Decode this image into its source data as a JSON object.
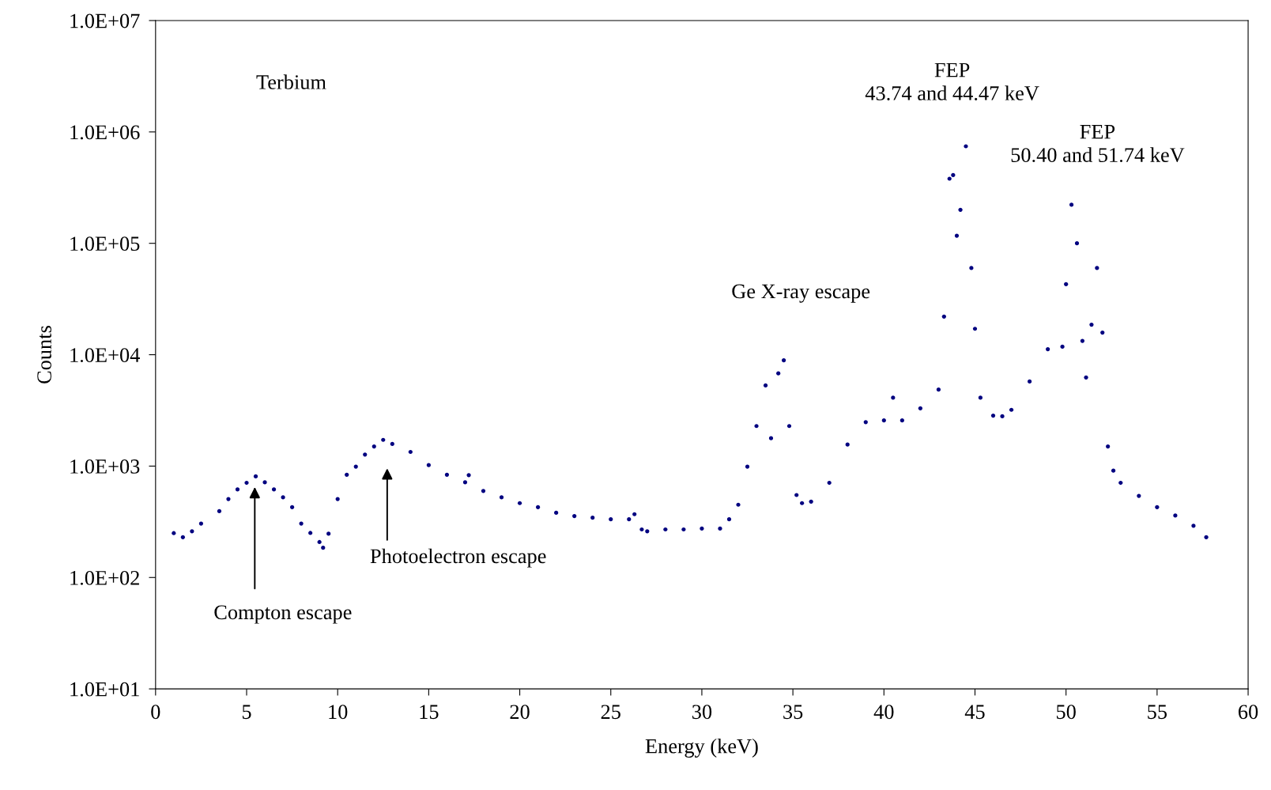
{
  "chart_data": {
    "type": "scatter",
    "xlabel": "Energy (keV)",
    "ylabel": "Counts",
    "log": "y",
    "marker": "circle",
    "xlim": [
      0,
      60
    ],
    "xticks": [
      0,
      5,
      10,
      15,
      20,
      25,
      30,
      35,
      40,
      45,
      50,
      55,
      60
    ],
    "ylim": [
      10,
      10000000
    ],
    "yticks": [
      {
        "value": 10,
        "label": "1.0E+01"
      },
      {
        "value": 100,
        "label": "1.0E+02"
      },
      {
        "value": 1000,
        "label": "1.0E+03"
      },
      {
        "value": 10000,
        "label": "1.0E+04"
      },
      {
        "value": 100000,
        "label": "1.0E+05"
      },
      {
        "value": 1000000,
        "label": "1.0E+06"
      },
      {
        "value": 10000000,
        "label": "1.0E+07"
      }
    ],
    "series": [
      {
        "color": "#000080",
        "x": [
          1.0,
          1.5,
          2.0,
          2.5,
          3.5,
          4.0,
          4.5,
          5.0,
          5.5,
          6.0,
          6.5,
          7.0,
          7.5,
          8.0,
          8.5,
          9.0,
          9.2,
          9.5,
          10.0,
          10.5,
          11.0,
          11.5,
          12.0,
          12.5,
          13.0,
          14.0,
          15.0,
          16.0,
          17.0,
          17.2,
          18.0,
          19.0,
          20.0,
          21.0,
          22.0,
          23.0,
          24.0,
          25.0,
          26.0,
          26.3,
          26.7,
          27.0,
          28.0,
          29.0,
          30.0,
          31.0,
          31.5,
          32.0,
          32.5,
          33.0,
          33.5,
          33.8,
          34.2,
          34.5,
          34.8,
          35.2,
          35.5,
          36.0,
          37.0,
          38.0,
          39.0,
          40.0,
          40.5,
          41.0,
          42.0,
          43.0,
          43.3,
          43.6,
          43.8,
          44.0,
          44.2,
          44.5,
          44.8,
          45.0,
          45.3,
          46.0,
          46.5,
          47.0,
          48.0,
          49.0,
          49.8,
          50.0,
          50.3,
          50.6,
          50.9,
          51.1,
          51.4,
          51.7,
          52.0,
          52.3,
          52.6,
          53.0,
          54.0,
          55.0,
          56.0,
          57.0,
          57.7
        ],
        "values": [
          250,
          230,
          260,
          305,
          394,
          506,
          617,
          708,
          809,
          715,
          617,
          524,
          428,
          305,
          251,
          208,
          185,
          247,
          506,
          836,
          989,
          1270,
          1500,
          1720,
          1580,
          1340,
          1020,
          836,
          715,
          830,
          598,
          524,
          465,
          428,
          381,
          356,
          344,
          333,
          333,
          370,
          270,
          260,
          270,
          270,
          275,
          275,
          333,
          450,
          989,
          2290,
          5300,
          1780,
          6800,
          8900,
          2290,
          550,
          465,
          480,
          708,
          1560,
          2480,
          2570,
          4110,
          2570,
          3300,
          4860,
          22000,
          380000,
          410000,
          117000,
          200000,
          743000,
          60000,
          17100,
          4110,
          2840,
          2800,
          3200,
          5750,
          11200,
          11800,
          43000,
          222000,
          100000,
          13300,
          6250,
          18600,
          60000,
          15800,
          1500,
          910,
          708,
          540,
          428,
          360,
          291,
          230
        ]
      }
    ],
    "annotations": [
      "Terbium",
      {
        "text": "FEP\n43.74 and 44.47 keV",
        "x": 44.47,
        "y": 743000
      },
      {
        "text": "FEP\n50.40 and 51.74 keV",
        "x": 50.4,
        "y": 222000
      },
      "Ge X-ray escape",
      "Photoelectron escape",
      "Compton escape"
    ]
  }
}
